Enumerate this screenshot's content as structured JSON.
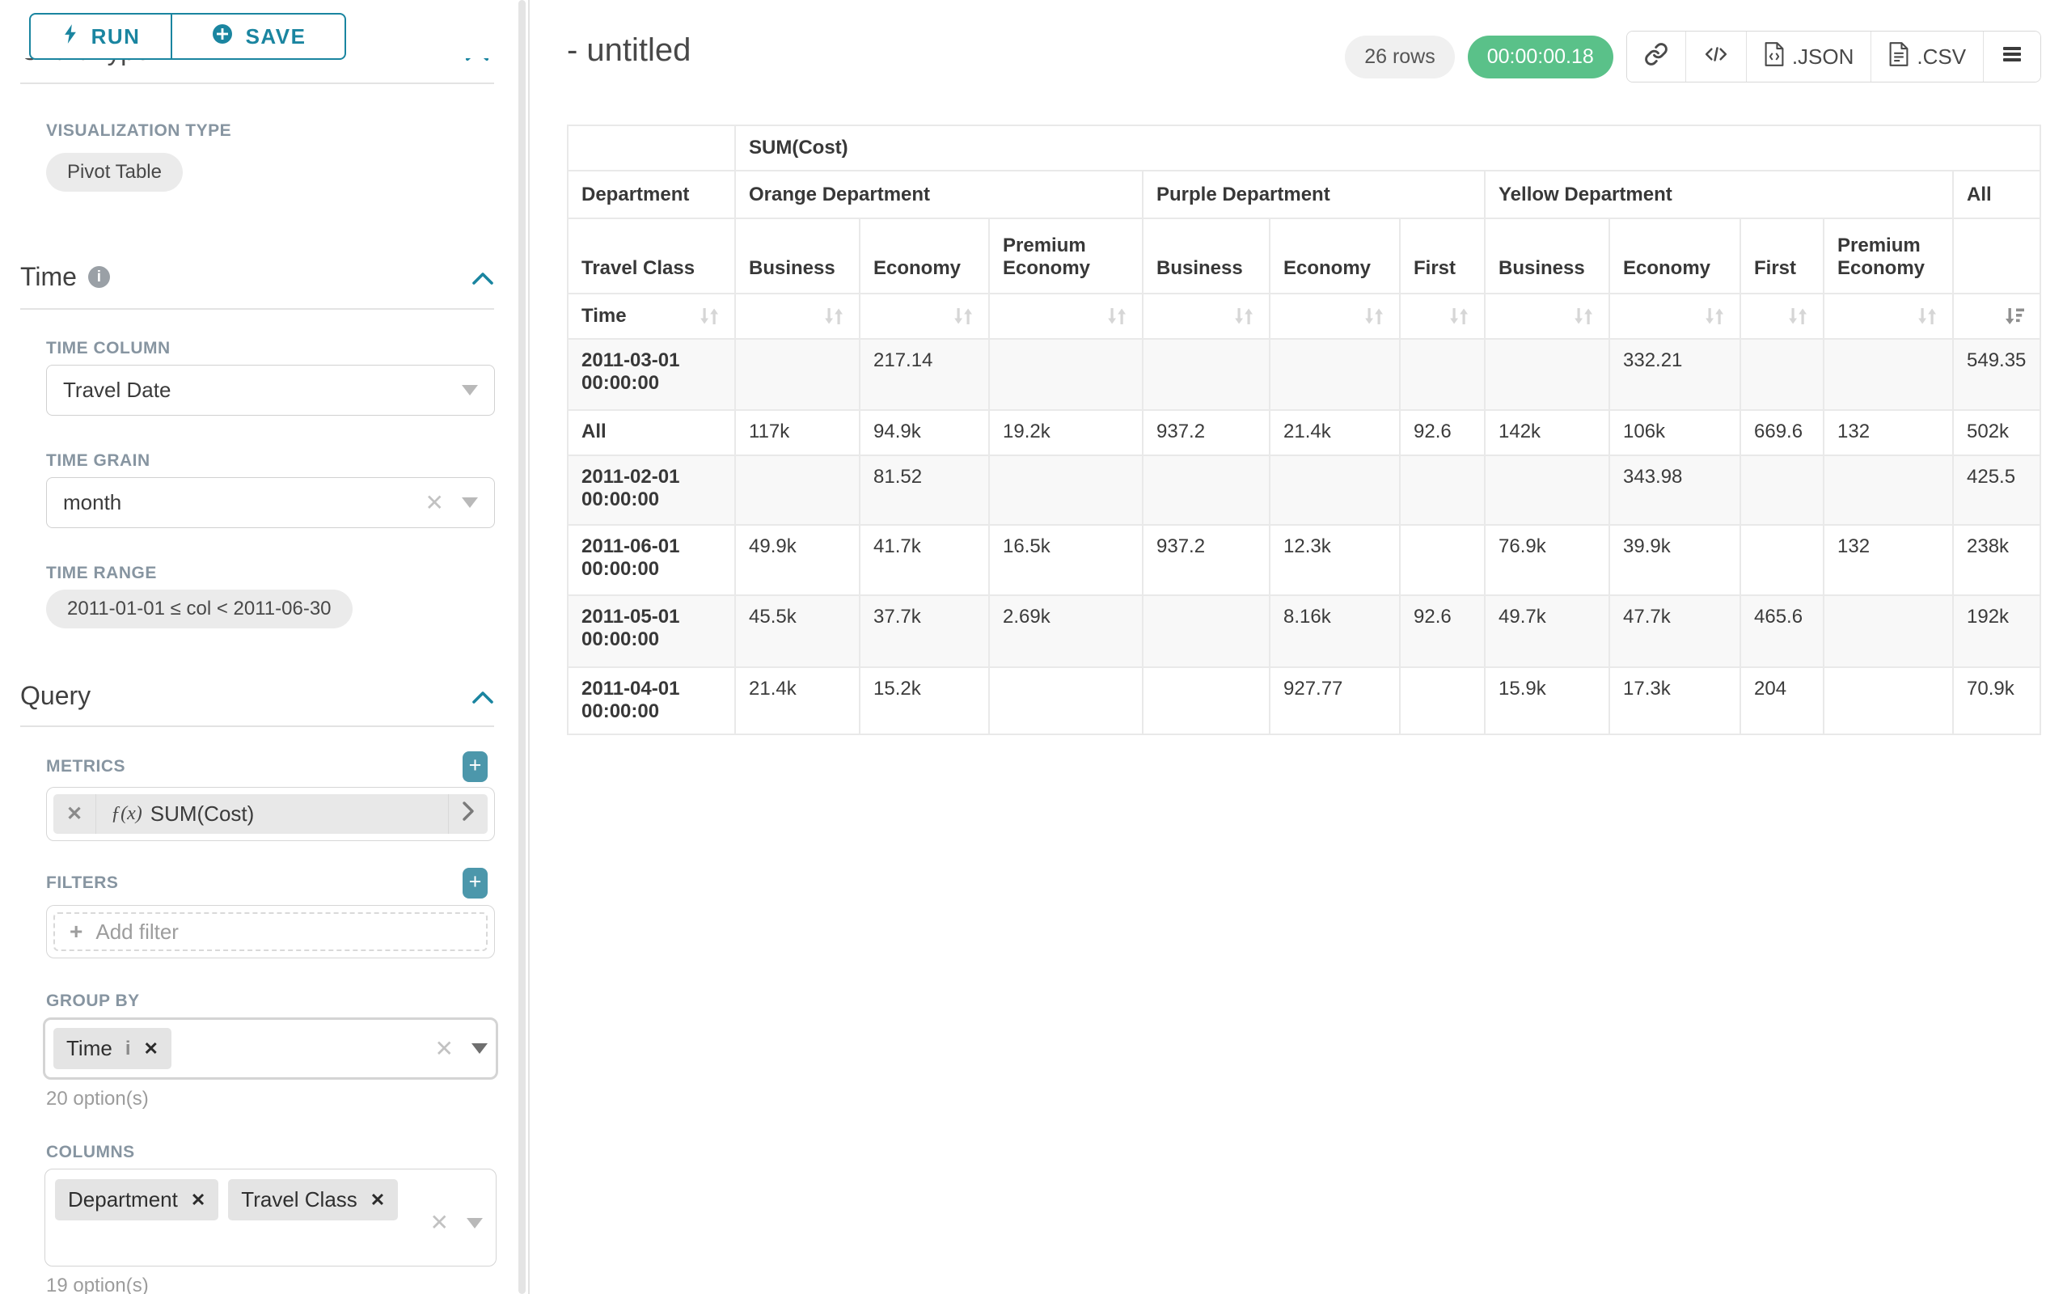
{
  "sidebar": {
    "run_label": "RUN",
    "save_label": "SAVE",
    "chart_type_heading": "Chart Type",
    "visualization_type_label": "VISUALIZATION TYPE",
    "visualization_type_value": "Pivot Table",
    "time_section_title": "Time",
    "time_column_label": "TIME COLUMN",
    "time_column_value": "Travel Date",
    "time_grain_label": "TIME GRAIN",
    "time_grain_value": "month",
    "time_range_label": "TIME RANGE",
    "time_range_value": "2011-01-01 ≤ col < 2011-06-30",
    "query_section_title": "Query",
    "metrics_label": "METRICS",
    "metric_fx": "ƒ(x)",
    "metric_value": "SUM(Cost)",
    "filters_label": "FILTERS",
    "add_filter_placeholder": "Add filter",
    "group_by_label": "GROUP BY",
    "group_by_chips": [
      "Time"
    ],
    "group_by_options_hint": "20 option(s)",
    "columns_label": "COLUMNS",
    "columns_chips": [
      "Department",
      "Travel Class"
    ],
    "columns_options_hint": "19 option(s)"
  },
  "header": {
    "title": "- untitled",
    "rows_badge": "26 rows",
    "timer_badge": "00:00:00.18",
    "export_json_label": ".JSON",
    "export_csv_label": ".CSV"
  },
  "colors": {
    "accent": "#1a85a0",
    "success": "#5ac189"
  },
  "pivot_table": {
    "metric_header": "SUM(Cost)",
    "row_dimension_label": "Department",
    "col_dimension_label": "Travel Class",
    "time_label": "Time",
    "column_groups": [
      {
        "label": "Orange Department",
        "children": [
          "Business",
          "Economy",
          "Premium Economy"
        ]
      },
      {
        "label": "Purple Department",
        "children": [
          "Business",
          "Economy",
          "First"
        ]
      },
      {
        "label": "Yellow Department",
        "children": [
          "Business",
          "Economy",
          "First",
          "Premium Economy"
        ]
      },
      {
        "label": "All",
        "children": [
          ""
        ]
      }
    ],
    "rows": [
      {
        "label": "2011-03-01 00:00:00",
        "values": [
          "",
          "217.14",
          "",
          "",
          "",
          "",
          "",
          "332.21",
          "",
          "",
          "549.35"
        ]
      },
      {
        "label": "All",
        "values": [
          "117k",
          "94.9k",
          "19.2k",
          "937.2",
          "21.4k",
          "92.6",
          "142k",
          "106k",
          "669.6",
          "132",
          "502k"
        ]
      },
      {
        "label": "2011-02-01 00:00:00",
        "values": [
          "",
          "81.52",
          "",
          "",
          "",
          "",
          "",
          "343.98",
          "",
          "",
          "425.5"
        ]
      },
      {
        "label": "2011-06-01 00:00:00",
        "values": [
          "49.9k",
          "41.7k",
          "16.5k",
          "937.2",
          "12.3k",
          "",
          "76.9k",
          "39.9k",
          "",
          "132",
          "238k"
        ]
      },
      {
        "label": "2011-05-01 00:00:00",
        "values": [
          "45.5k",
          "37.7k",
          "2.69k",
          "",
          "8.16k",
          "92.6",
          "49.7k",
          "47.7k",
          "465.6",
          "",
          "192k"
        ]
      },
      {
        "label": "2011-04-01 00:00:00",
        "values": [
          "21.4k",
          "15.2k",
          "",
          "",
          "927.77",
          "",
          "15.9k",
          "17.3k",
          "204",
          "",
          "70.9k"
        ]
      }
    ],
    "sorted_column": "All",
    "sort_direction": "desc"
  }
}
